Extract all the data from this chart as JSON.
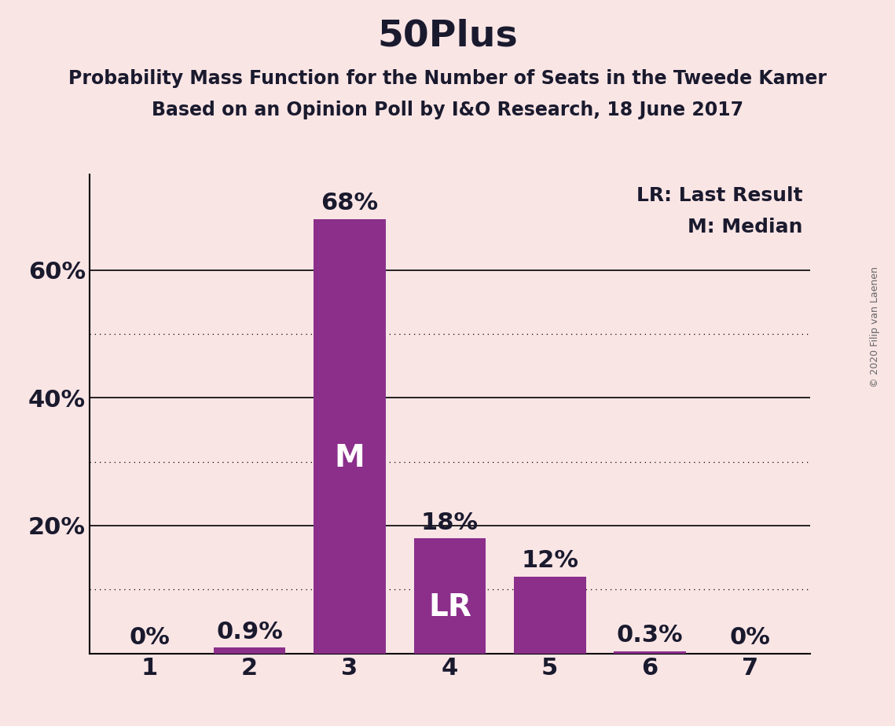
{
  "title": "50Plus",
  "subtitle1": "Probability Mass Function for the Number of Seats in the Tweede Kamer",
  "subtitle2": "Based on an Opinion Poll by I&O Research, 18 June 2017",
  "copyright": "© 2020 Filip van Laenen",
  "categories": [
    1,
    2,
    3,
    4,
    5,
    6,
    7
  ],
  "values": [
    0.0,
    0.9,
    68.0,
    18.0,
    12.0,
    0.3,
    0.0
  ],
  "bar_color": "#8B2F8B",
  "background_color": "#FAE5E5",
  "label_color_outside": "#1a1a2e",
  "label_color_inside": "#ffffff",
  "bar_labels": [
    "0%",
    "0.9%",
    "68%",
    "18%",
    "12%",
    "0.3%",
    "0%"
  ],
  "median_bar_idx": 2,
  "lr_bar_idx": 3,
  "median_label": "M",
  "lr_label": "LR",
  "legend_lr": "LR: Last Result",
  "legend_m": "M: Median",
  "ylim": [
    0,
    75
  ],
  "solid_gridlines": [
    20,
    40,
    60
  ],
  "dotted_gridlines": [
    10,
    30,
    50
  ],
  "title_fontsize": 34,
  "subtitle_fontsize": 17,
  "axis_tick_fontsize": 22,
  "bar_label_fontsize": 22,
  "legend_fontsize": 18,
  "inside_label_fontsize": 28,
  "copyright_fontsize": 9
}
